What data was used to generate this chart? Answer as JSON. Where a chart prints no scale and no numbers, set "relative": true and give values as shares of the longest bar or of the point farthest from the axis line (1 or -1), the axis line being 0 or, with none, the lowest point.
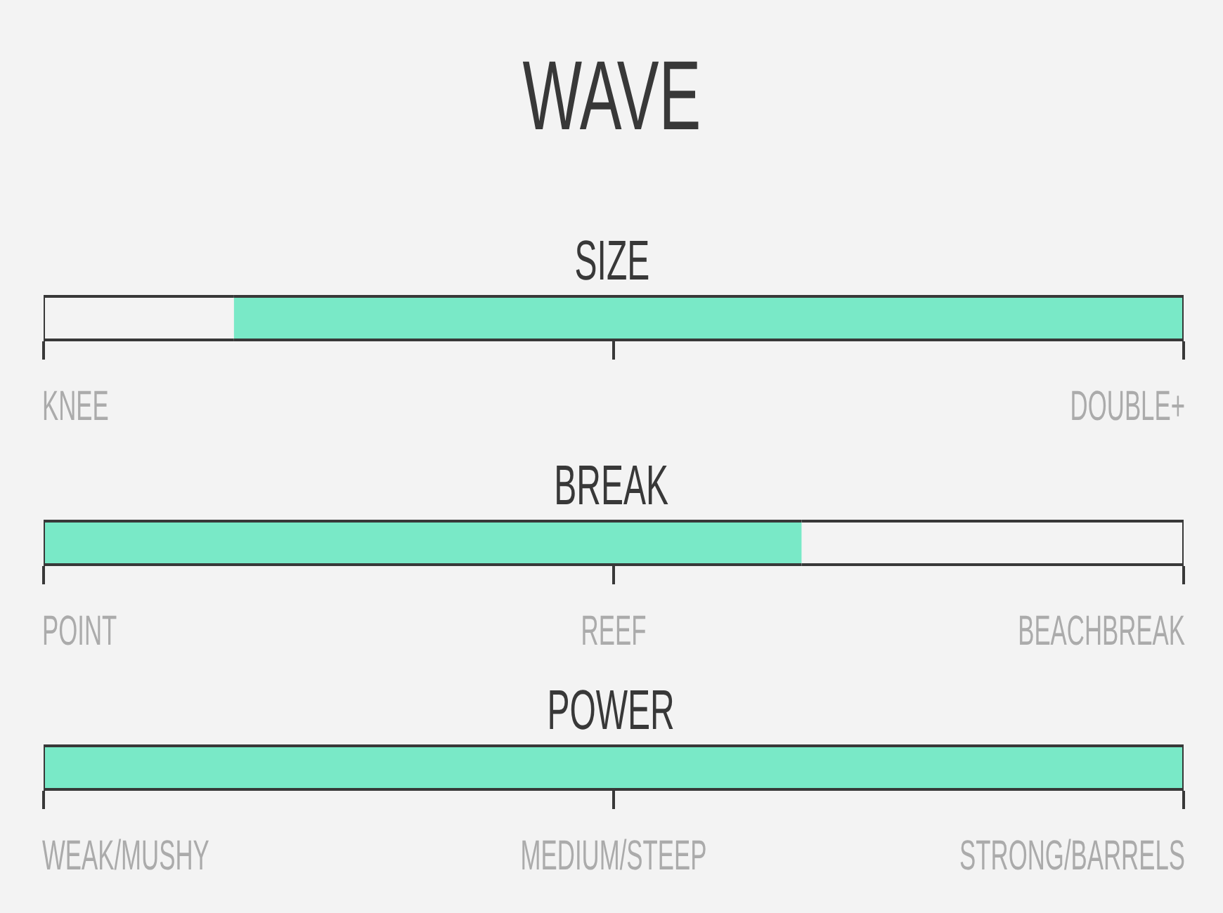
{
  "chart_data": [
    {
      "type": "other",
      "title": "WAVE"
    },
    {
      "type": "bar",
      "title": "SIZE",
      "orientation": "horizontal",
      "stacked": true,
      "relative": true,
      "categories": [
        null
      ],
      "series": [
        {
          "color": "#f3f3f3",
          "values": [
            0.167
          ]
        },
        {
          "color": "#79e9c7",
          "values": [
            0.833
          ]
        }
      ],
      "annotations": [
        "KNEE",
        "DOUBLE+"
      ],
      "tick_labels": false
    },
    {
      "type": "bar",
      "title": "BREAK",
      "orientation": "horizontal",
      "stacked": true,
      "relative": true,
      "categories": [
        null
      ],
      "series": [
        {
          "color": "#79e9c7",
          "values": [
            0.665
          ]
        },
        {
          "color": "#f3f3f3",
          "values": [
            0.335
          ]
        }
      ],
      "annotations": [
        "POINT",
        "REEF",
        "BEACHBREAK"
      ],
      "tick_labels": false
    },
    {
      "type": "bar",
      "title": "POWER",
      "orientation": "horizontal",
      "stacked": true,
      "relative": true,
      "categories": [
        null
      ],
      "series": [
        {
          "color": "#79e9c7",
          "values": [
            1
          ]
        }
      ],
      "annotations": [
        "WEAK/MUSHY",
        "MEDIUM/STEEP",
        "STRONG/BARRELS"
      ],
      "tick_labels": false
    }
  ]
}
